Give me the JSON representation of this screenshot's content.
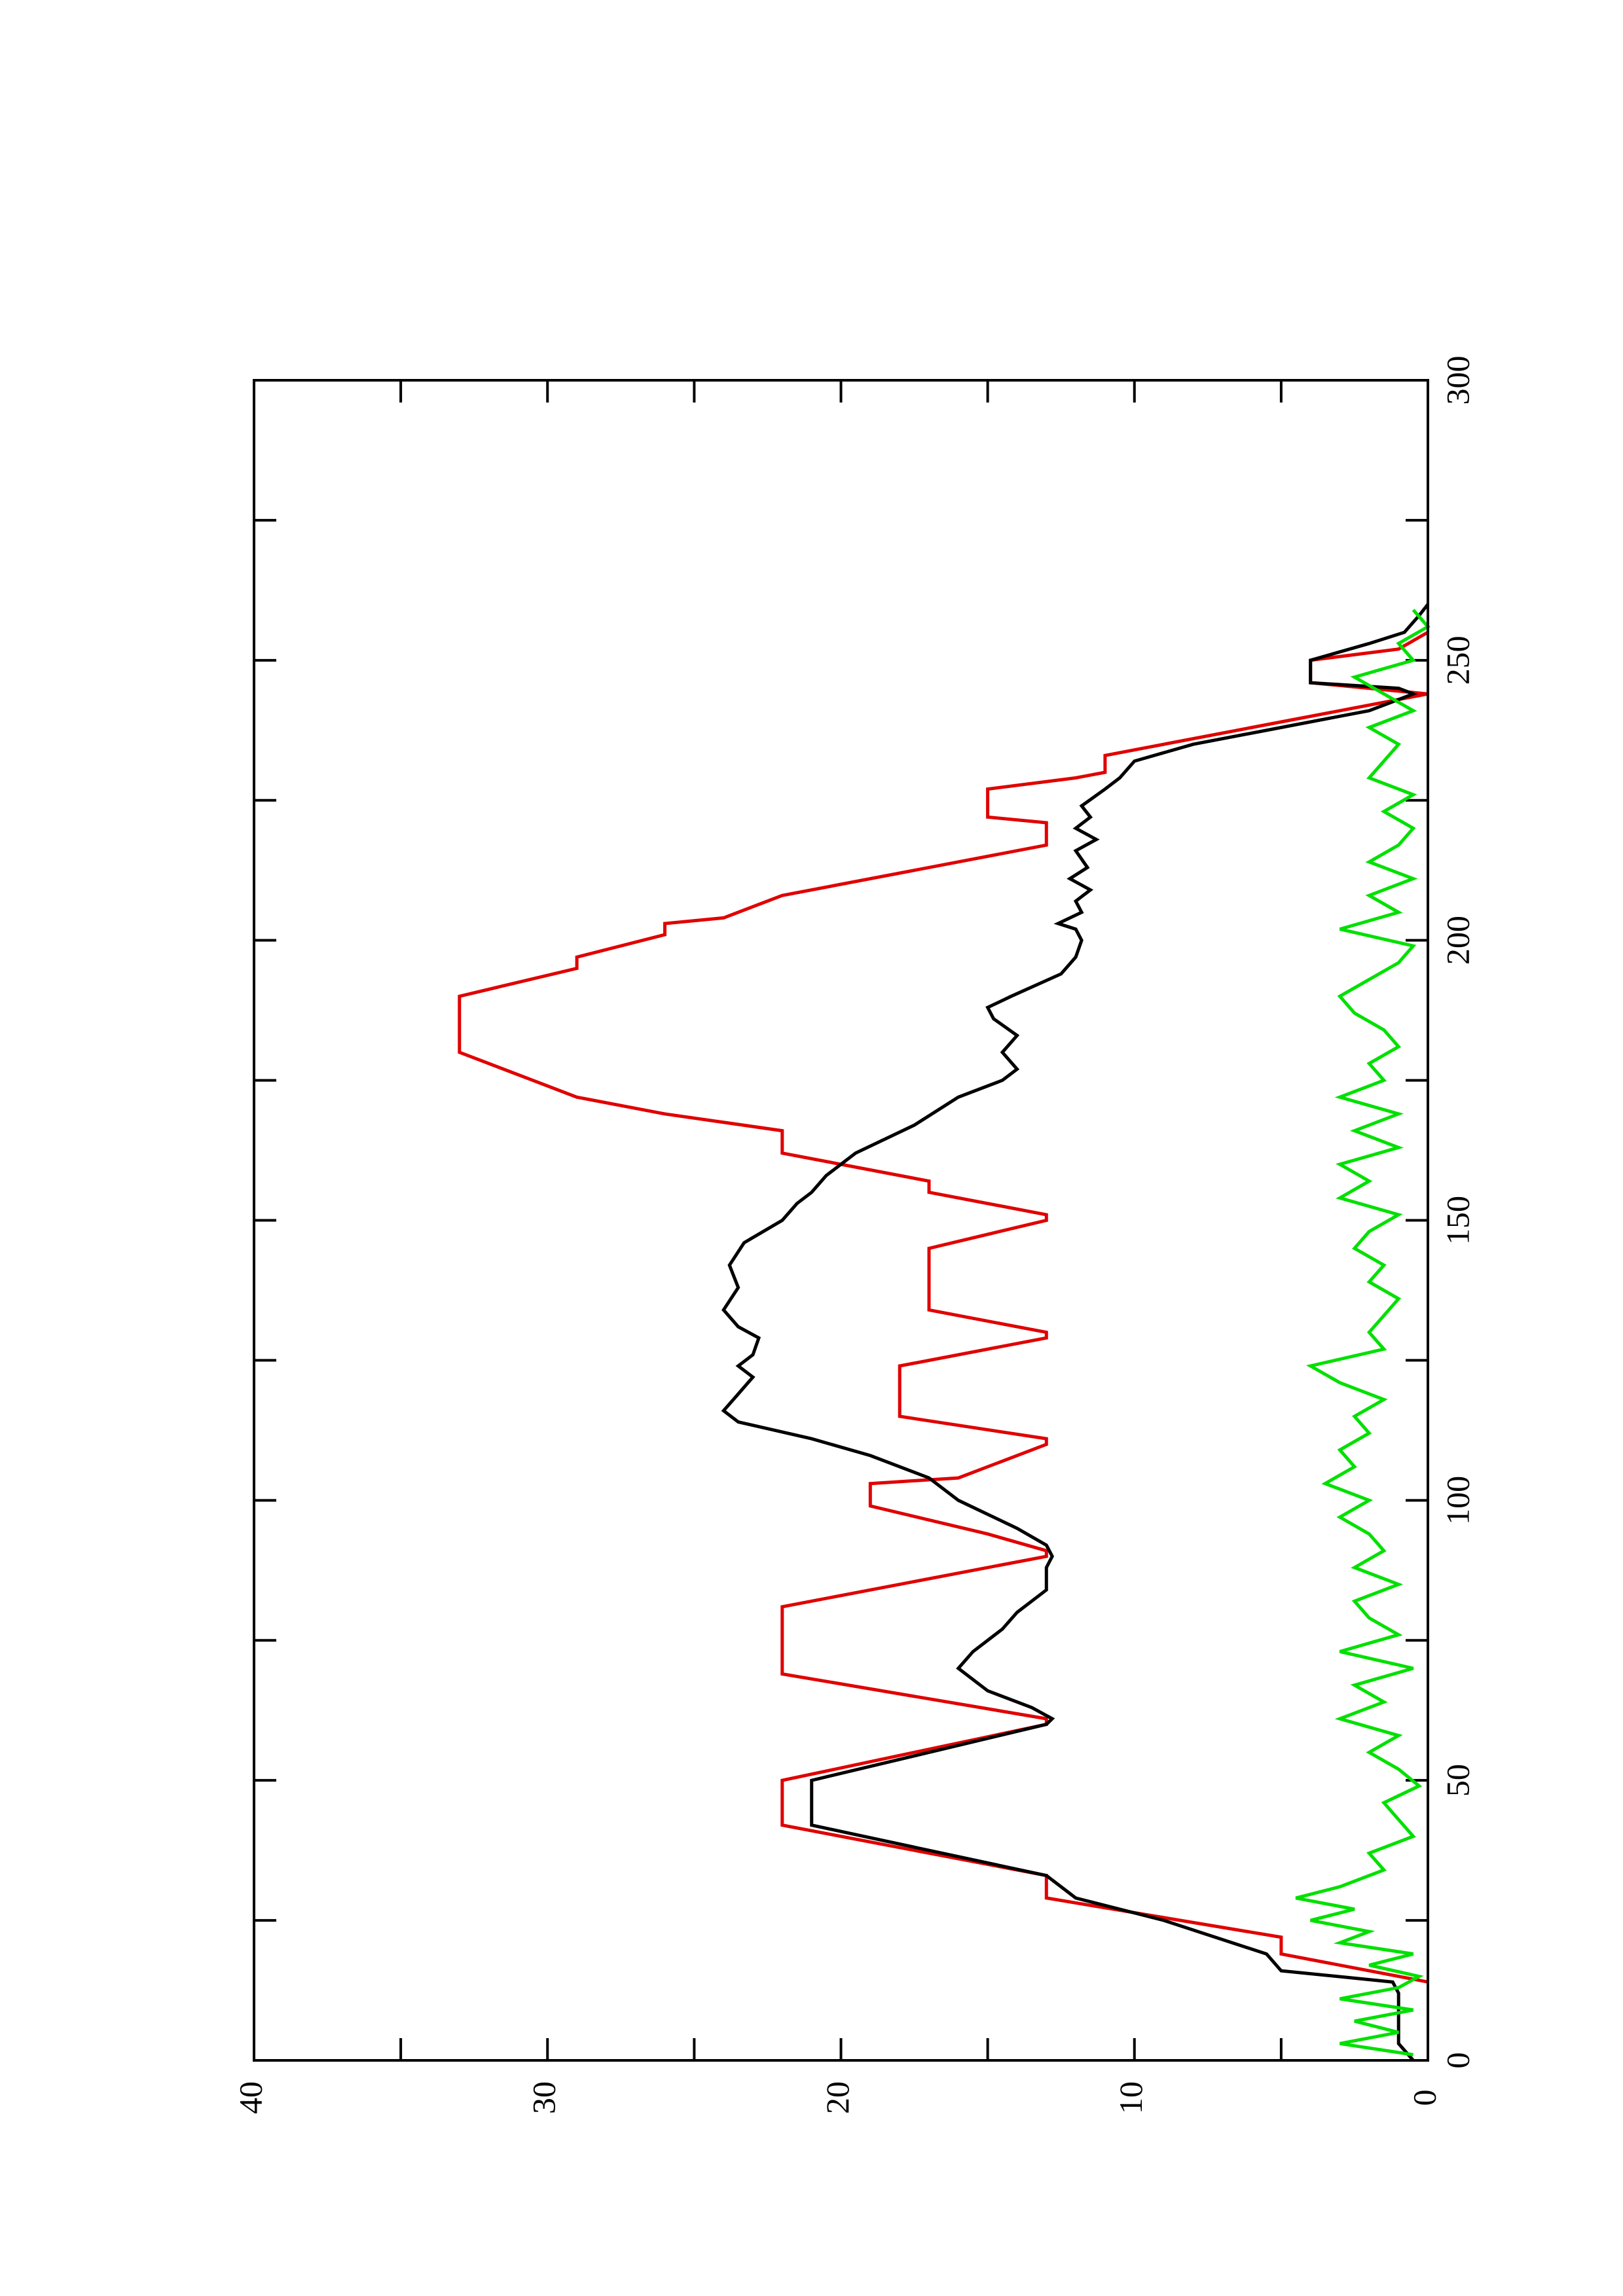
{
  "chart_data": {
    "type": "line",
    "orientation": "rotated",
    "xlim": [
      0,
      300
    ],
    "xticks": [
      0,
      50,
      100,
      150,
      200,
      250,
      300
    ],
    "xticks_minor": [
      25,
      75,
      125,
      175,
      225,
      275
    ],
    "ylim": [
      0,
      40
    ],
    "yticks": [
      0,
      10,
      20,
      30,
      40
    ],
    "yticks_minor": [
      5,
      15,
      25,
      35
    ],
    "series": [
      {
        "color": "#e00000",
        "x": [
          14,
          19,
          22,
          29,
          33,
          42,
          50,
          60,
          61,
          69,
          81,
          90,
          91,
          94,
          99,
          103,
          104,
          110,
          111,
          115,
          124,
          129,
          130,
          134,
          145,
          150,
          151,
          155,
          157,
          162,
          166,
          169,
          172,
          180,
          190,
          195,
          197,
          201,
          203,
          204,
          208,
          217,
          221,
          222,
          227,
          229,
          230,
          233,
          238,
          244,
          246,
          250,
          252,
          255
        ],
        "values": [
          0,
          5,
          5,
          13,
          13,
          22,
          22,
          13,
          13,
          22,
          22,
          13,
          13,
          15,
          19,
          19,
          16,
          13,
          13,
          18,
          18,
          13,
          13,
          17,
          17,
          13,
          13,
          17,
          17,
          22,
          22,
          26,
          29,
          33,
          33,
          29,
          29,
          26,
          26,
          24,
          22,
          13,
          13,
          15,
          15,
          12,
          11,
          11,
          6,
          0,
          4,
          4,
          1,
          0
        ]
      },
      {
        "color": "#000000",
        "x": [
          0,
          3,
          8,
          12,
          14,
          16,
          19,
          25,
          29,
          33,
          42,
          50,
          60,
          61,
          63,
          66,
          70,
          73,
          77,
          80,
          84,
          88,
          90,
          92,
          95,
          100,
          104,
          108,
          111,
          114,
          116,
          119,
          122,
          124,
          126,
          129,
          131,
          134,
          138,
          142,
          146,
          150,
          153,
          155,
          158,
          160,
          162,
          167,
          172,
          175,
          177,
          180,
          183,
          186,
          188,
          190,
          194,
          197,
          200,
          202,
          203,
          205,
          207,
          209,
          211,
          213,
          216,
          218,
          220,
          222,
          224,
          227,
          229,
          232,
          235,
          238,
          241,
          244,
          245,
          246,
          250,
          253,
          255,
          258,
          260
        ],
        "values": [
          0.5,
          1,
          1,
          1,
          1.2,
          5,
          5.5,
          9,
          12,
          13,
          21,
          21,
          13,
          12.8,
          13.5,
          15,
          16,
          15.5,
          14.5,
          14,
          13,
          13,
          12.8,
          13,
          14,
          16,
          17,
          19,
          21,
          23.5,
          24,
          23.5,
          23,
          23.5,
          23,
          22.8,
          23.5,
          24,
          23.5,
          23.8,
          23.3,
          22,
          21.5,
          21,
          20.5,
          20,
          19.5,
          17.5,
          16,
          14.5,
          14,
          14.5,
          14,
          14.8,
          15,
          14.2,
          12.5,
          12,
          11.8,
          12,
          12.6,
          11.8,
          12,
          11.5,
          12.2,
          11.6,
          12,
          11.3,
          12,
          11.5,
          11.8,
          11,
          10.5,
          10,
          8,
          5,
          2,
          0.5,
          1,
          4,
          4,
          2,
          0.8,
          0.3,
          0
        ]
      },
      {
        "color": "#00e000",
        "x": [
          1,
          3,
          5,
          7,
          9,
          11,
          13,
          15,
          17,
          19,
          21,
          23,
          25,
          27,
          29,
          31,
          34,
          37,
          40,
          43,
          46,
          49,
          52,
          55,
          58,
          61,
          64,
          67,
          70,
          73,
          76,
          79,
          82,
          85,
          88,
          91,
          94,
          97,
          100,
          103,
          106,
          109,
          112,
          115,
          118,
          121,
          124,
          127,
          130,
          133,
          136,
          139,
          142,
          145,
          148,
          151,
          154,
          157,
          160,
          163,
          166,
          169,
          172,
          175,
          178,
          181,
          184,
          187,
          190,
          193,
          196,
          199,
          202,
          205,
          208,
          211,
          214,
          217,
          220,
          223,
          226,
          229,
          232,
          235,
          238,
          241,
          244,
          247,
          250,
          253,
          256,
          259
        ],
        "values": [
          0.5,
          3,
          1,
          2.5,
          0.5,
          3,
          1,
          0.3,
          2,
          0.5,
          3,
          2,
          4,
          2.5,
          4.5,
          3,
          1.5,
          2,
          0.5,
          1,
          1.5,
          0.3,
          1,
          2,
          1,
          3,
          1.5,
          2.5,
          0.5,
          3,
          1,
          2,
          2.5,
          1,
          2.5,
          1.5,
          2,
          3,
          2,
          3.5,
          2.5,
          3,
          2,
          2.5,
          1.5,
          3,
          4,
          1.5,
          2,
          1.5,
          1,
          2,
          1.5,
          2.5,
          2,
          1,
          3,
          2,
          3,
          1,
          2.5,
          1,
          3,
          1.5,
          2,
          1,
          1.5,
          2.5,
          3,
          2,
          1,
          0.5,
          3,
          1,
          2,
          0.5,
          2,
          1,
          0.5,
          1.5,
          0.5,
          2,
          1.5,
          1,
          2,
          0.5,
          1.5,
          2.5,
          0.5,
          1,
          0,
          0.5
        ]
      }
    ]
  }
}
